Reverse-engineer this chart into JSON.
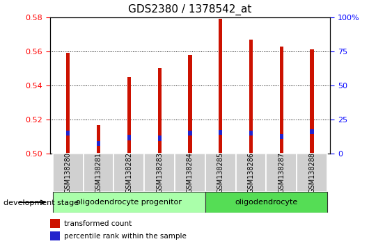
{
  "title": "GDS2380 / 1378542_at",
  "samples": [
    "GSM138280",
    "GSM138281",
    "GSM138282",
    "GSM138283",
    "GSM138284",
    "GSM138285",
    "GSM138286",
    "GSM138287",
    "GSM138288"
  ],
  "transformed_count": [
    0.559,
    0.517,
    0.545,
    0.55,
    0.558,
    0.579,
    0.567,
    0.563,
    0.561
  ],
  "percentile_rank_val": [
    0.5105,
    0.5045,
    0.508,
    0.5075,
    0.5105,
    0.511,
    0.5105,
    0.5085,
    0.5115
  ],
  "percentile_rank_height": [
    0.003,
    0.003,
    0.003,
    0.003,
    0.003,
    0.003,
    0.003,
    0.003,
    0.003
  ],
  "ylim_left": [
    0.5,
    0.58
  ],
  "ylim_right": [
    0,
    100
  ],
  "yticks_left": [
    0.5,
    0.52,
    0.54,
    0.56,
    0.58
  ],
  "yticks_right": [
    0,
    25,
    50,
    75,
    100
  ],
  "bar_color_red": "#cc1100",
  "bar_color_blue": "#2222cc",
  "group1_label": "oligodendrocyte progenitor",
  "group2_label": "oligodendrocyte",
  "group1_indices": [
    0,
    1,
    2,
    3,
    4
  ],
  "group2_indices": [
    5,
    6,
    7,
    8
  ],
  "dev_stage_label": "development stage",
  "legend_red": "transformed count",
  "legend_blue": "percentile rank within the sample",
  "group1_color": "#aaffaa",
  "group2_color": "#55dd55",
  "tick_bg_color": "#d0d0d0",
  "bar_width": 0.12,
  "blue_bar_width": 0.12,
  "title_fontsize": 11,
  "tick_fontsize": 8
}
